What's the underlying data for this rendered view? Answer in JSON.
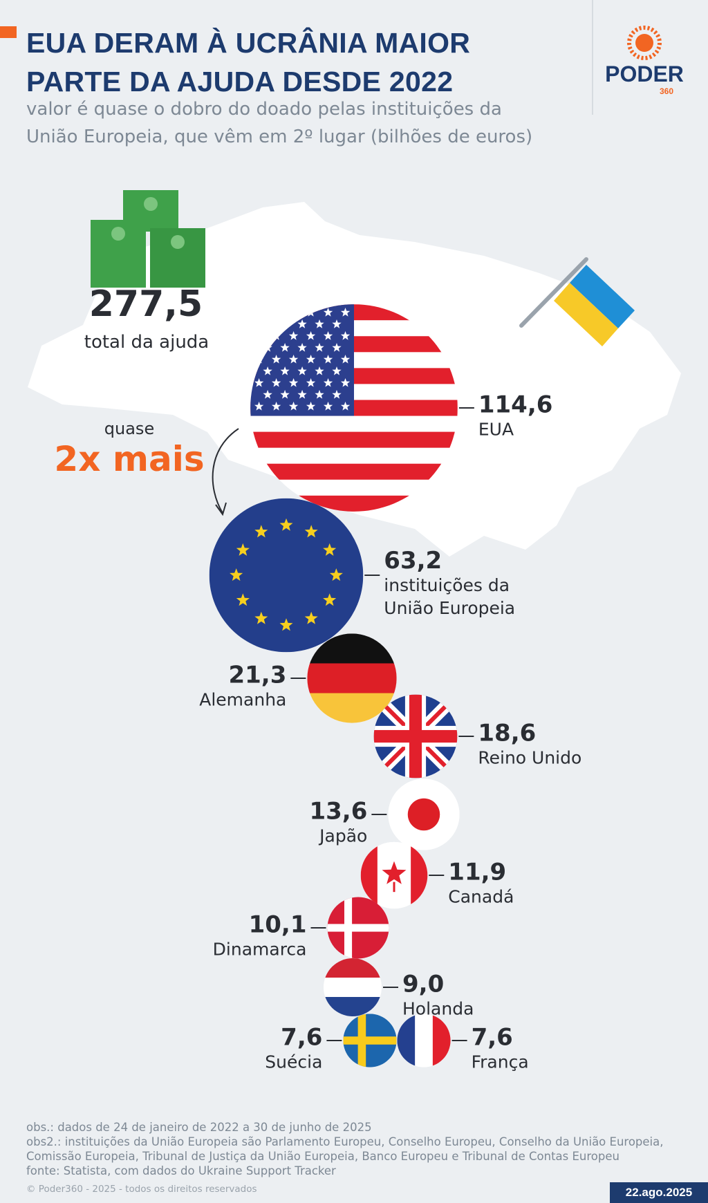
{
  "chart_data": {
    "type": "bubble",
    "title": "EUA DERAM À UCRÂNIA MAIOR PARTE DA AJUDA DESDE 2022",
    "subtitle": "valor é quase o dobro do doado pelas instituições da União Europeia, que vêm em 2º lugar (bilhões de euros)",
    "total": {
      "value": 277.5,
      "label": "277,5"
    },
    "total_text": "total da ajuda",
    "annotation": {
      "prefix": "quase",
      "text": "2x mais"
    },
    "categories": [
      "EUA",
      "instituições da União Europeia",
      "Alemanha",
      "Reino Unido",
      "Japão",
      "Canadá",
      "Dinamarca",
      "Holanda",
      "Suécia",
      "França"
    ],
    "values": [
      114.6,
      63.2,
      21.3,
      18.6,
      13.6,
      11.9,
      10.1,
      9.0,
      7.6,
      7.6
    ],
    "value_labels": [
      "114,6",
      "63,2",
      "21,3",
      "18,6",
      "13,6",
      "11,9",
      "10,1",
      "9,0",
      "7,6",
      "7,6"
    ],
    "notes": [
      "obs.: dados de 24 de janeiro de 2022 a 30 de junho de 2025",
      "obs2.: instituições da União Europeia são Parlamento Europeu, Conselho Europeu, Conselho da União Europeia, Comissão Europeia, Tribunal de Justiça da União Europeia, Banco Europeu e Tribunal de Contas Europeu",
      "fonte: Statista, com dados do Ukraine Support Tracker"
    ],
    "copyright": "© Poder360 - 2025 - todos os direitos reservados",
    "date": "22.ago.2025",
    "brand": "PODER",
    "brand_sub": "360"
  }
}
